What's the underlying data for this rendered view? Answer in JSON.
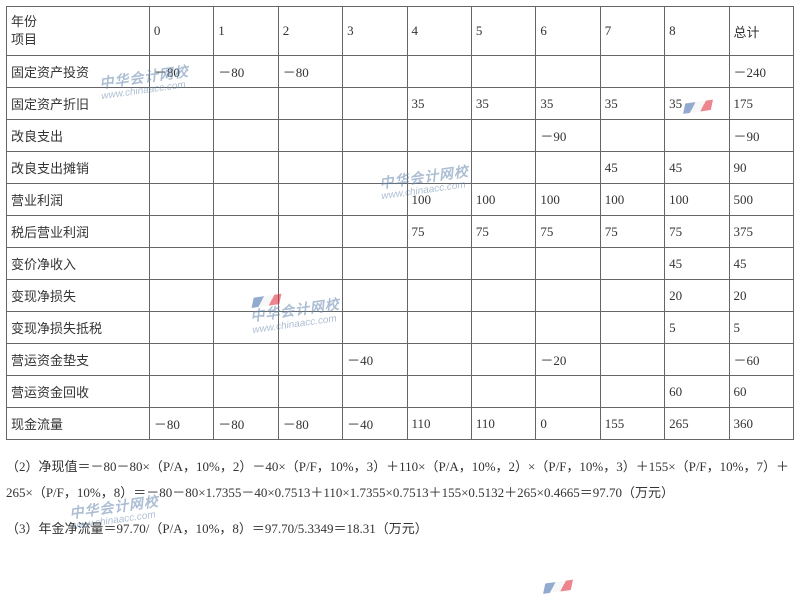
{
  "table": {
    "header": {
      "line1": "年份",
      "line2": "项目",
      "years": [
        "0",
        "1",
        "2",
        "3",
        "4",
        "5",
        "6",
        "7",
        "8"
      ],
      "total": "总计"
    },
    "rows": [
      {
        "label": "固定资产投资",
        "cells": [
          "－80",
          "－80",
          "－80",
          "",
          "",
          "",
          "",
          "",
          ""
        ],
        "total": "－240"
      },
      {
        "label": "固定资产折旧",
        "cells": [
          "",
          "",
          "",
          "",
          "35",
          "35",
          "35",
          "35",
          "35"
        ],
        "total": "175"
      },
      {
        "label": "改良支出",
        "cells": [
          "",
          "",
          "",
          "",
          "",
          "",
          "－90",
          "",
          ""
        ],
        "total": "－90"
      },
      {
        "label": "改良支出摊销",
        "cells": [
          "",
          "",
          "",
          "",
          "",
          "",
          "",
          "45",
          "45"
        ],
        "total": "90"
      },
      {
        "label": "营业利润",
        "cells": [
          "",
          "",
          "",
          "",
          "100",
          "100",
          "100",
          "100",
          "100"
        ],
        "total": "500"
      },
      {
        "label": "税后营业利润",
        "cells": [
          "",
          "",
          "",
          "",
          "75",
          "75",
          "75",
          "75",
          "75"
        ],
        "total": "375"
      },
      {
        "label": "变价净收入",
        "cells": [
          "",
          "",
          "",
          "",
          "",
          "",
          "",
          "",
          "45"
        ],
        "total": "45"
      },
      {
        "label": "变现净损失",
        "cells": [
          "",
          "",
          "",
          "",
          "",
          "",
          "",
          "",
          "20"
        ],
        "total": "20"
      },
      {
        "label": "变现净损失抵税",
        "cells": [
          "",
          "",
          "",
          "",
          "",
          "",
          "",
          "",
          "5"
        ],
        "total": "5"
      },
      {
        "label": "营运资金垫支",
        "cells": [
          "",
          "",
          "",
          "－40",
          "",
          "",
          "－20",
          "",
          ""
        ],
        "total": "－60"
      },
      {
        "label": "营运资金回收",
        "cells": [
          "",
          "",
          "",
          "",
          "",
          "",
          "",
          "",
          "60"
        ],
        "total": "60"
      },
      {
        "label": "现金流量",
        "cells": [
          "－80",
          "－80",
          "－80",
          "－40",
          "110",
          "110",
          "0",
          "155",
          "265"
        ],
        "total": "360"
      }
    ]
  },
  "calculations": {
    "line1": "（2）净现值＝－80－80×（P/A，10%，2）－40×（P/F，10%，3）＋110×（P/A，10%，2）×（P/F，10%，3）＋155×（P/F，10%，7）＋265×（P/F，10%，8）＝－80－80×1.7355－40×0.7513＋110×1.7355×0.7513＋155×0.5132＋265×0.4665＝97.70（万元）",
    "line2": "（3）年金净流量＝97.70/（P/A，10%，8）＝97.70/5.3349＝18.31（万元）"
  },
  "watermark": {
    "cn": "中华会计网校",
    "en": "www.chinaacc.com"
  }
}
